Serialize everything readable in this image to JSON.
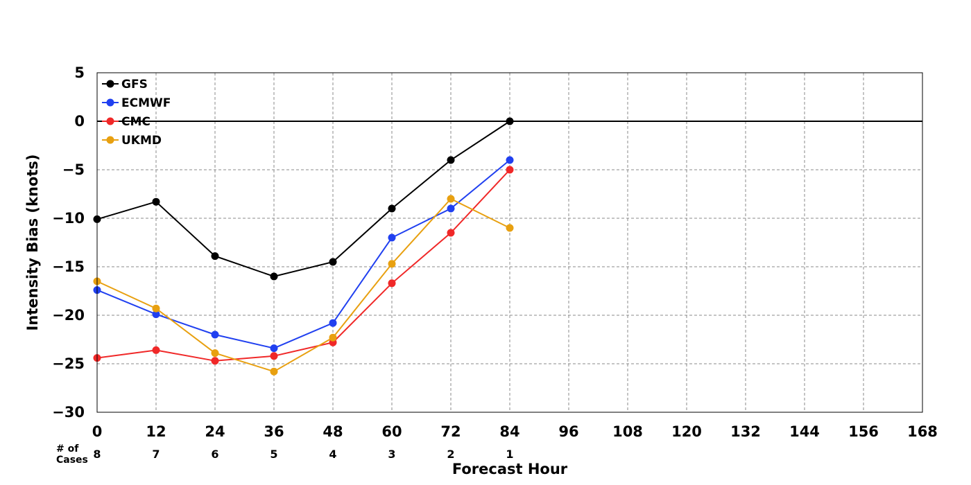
{
  "chart_data": {
    "type": "line",
    "title": "",
    "xlabel": "Forecast Hour",
    "ylabel": "Intensity Bias (knots)",
    "xlim": [
      0,
      168
    ],
    "ylim": [
      -30,
      5
    ],
    "x_ticks": [
      0,
      12,
      24,
      36,
      48,
      60,
      72,
      84,
      96,
      108,
      120,
      132,
      144,
      156,
      168
    ],
    "y_ticks": [
      5,
      0,
      -5,
      -10,
      -15,
      -20,
      -25,
      -30
    ],
    "y_tick_labels": [
      "5",
      "0",
      "−5",
      "−10",
      "−15",
      "−20",
      "−25",
      "−30"
    ],
    "grid": true,
    "zero_line": true,
    "legend_position": "top-left",
    "x": [
      0,
      12,
      24,
      36,
      48,
      60,
      72,
      84
    ],
    "series": [
      {
        "name": "GFS",
        "color": "#000000",
        "values": [
          -10.1,
          -8.3,
          -13.9,
          -16.0,
          -14.5,
          -9.0,
          -4.0,
          0.0
        ]
      },
      {
        "name": "ECMWF",
        "color": "#2040f0",
        "values": [
          -17.4,
          -19.9,
          -22.0,
          -23.4,
          -20.8,
          -12.0,
          -9.0,
          -4.0
        ]
      },
      {
        "name": "CMC",
        "color": "#f02828",
        "values": [
          -24.4,
          -23.6,
          -24.7,
          -24.2,
          -22.8,
          -16.7,
          -11.5,
          -5.0
        ]
      },
      {
        "name": "UKMD",
        "color": "#e8a010",
        "values": [
          -16.5,
          -19.3,
          -23.9,
          -25.8,
          -22.3,
          -14.7,
          -8.0,
          -11.0
        ]
      }
    ],
    "cases_label": "# of\nCases",
    "cases": [
      8,
      7,
      6,
      5,
      4,
      3,
      2,
      1
    ]
  }
}
